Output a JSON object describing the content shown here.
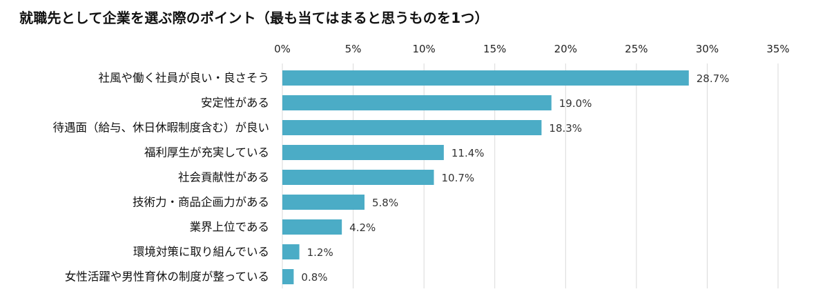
{
  "title": "就職先として企業を選ぶ際のポイント（最も当てはまると思うものを1つ）",
  "chart_data": {
    "type": "bar",
    "orientation": "horizontal",
    "title": "就職先として企業を選ぶ際のポイント（最も当てはまると思うものを1つ）",
    "categories": [
      "社風や働く社員が良い・良さそう",
      "安定性がある",
      "待遇面（給与、休日休暇制度含む）が良い",
      "福利厚生が充実している",
      "社会貢献性がある",
      "技術力・商品企画力がある",
      "業界上位である",
      "環境対策に取り組んでいる",
      "女性活躍や男性育休の制度が整っている"
    ],
    "values": [
      28.7,
      19.0,
      18.3,
      11.4,
      10.7,
      5.8,
      4.2,
      1.2,
      0.8
    ],
    "value_labels": [
      "28.7%",
      "19.0%",
      "18.3%",
      "11.4%",
      "10.7%",
      "5.8%",
      "4.2%",
      "1.2%",
      "0.8%"
    ],
    "xlim": [
      0,
      35
    ],
    "x_ticks": [
      0,
      5,
      10,
      15,
      20,
      25,
      30,
      35
    ],
    "x_tick_labels": [
      "0%",
      "5%",
      "10%",
      "15%",
      "20%",
      "25%",
      "30%",
      "35%"
    ],
    "axis_position": "top",
    "grid": true,
    "legend": false,
    "bar_color": "#4BACC6",
    "grid_color": "#D9D9D9"
  }
}
